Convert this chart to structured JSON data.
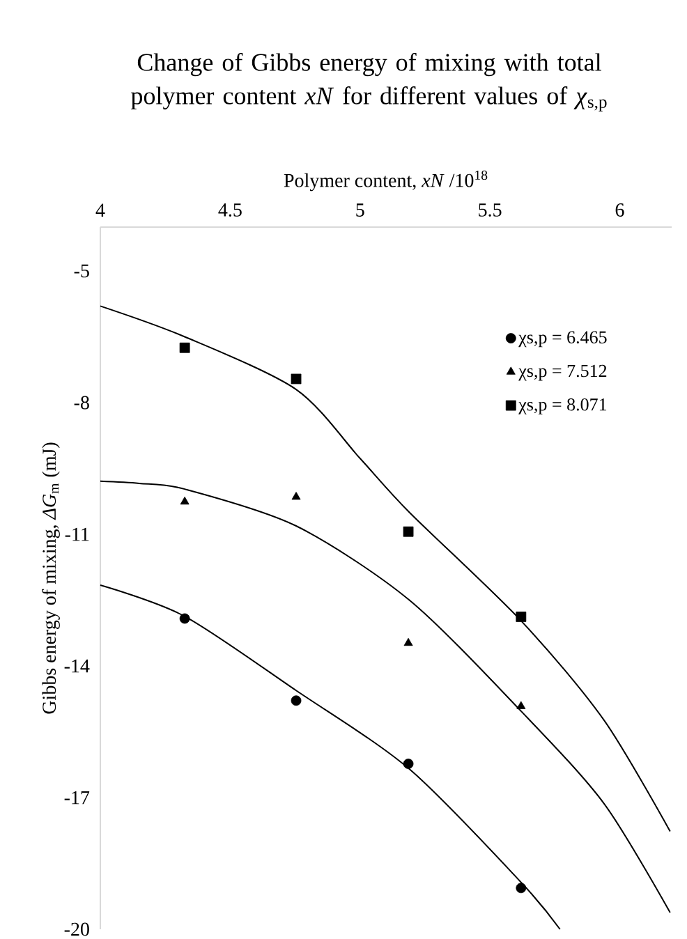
{
  "chart_data": {
    "type": "scatter",
    "title": "Change of Gibbs energy of mixing with total polymer content *xN* for different values of *χ*$_{s,p}$",
    "xlabel": "Polymer content, *xN* /10$^{18}$",
    "ylabel": "Gibbs energy of mixing, *ΔG*$_{m}$ (mJ)",
    "xlim": [
      4,
      6.2
    ],
    "xticks": [
      4,
      4.5,
      5,
      5.5,
      6
    ],
    "ylim": [
      -20,
      -4
    ],
    "yticks": [
      -5,
      -8,
      -11,
      -14,
      -17,
      -20
    ],
    "legend": "top right",
    "grid": false,
    "series": [
      {
        "type": "scatter",
        "name": "χs,p = 6.465",
        "color": "#000000",
        "marker": "circle",
        "x": [
          4.325,
          4.754,
          5.186,
          5.62
        ],
        "values": [
          -12.92,
          -14.79,
          -16.23,
          -19.06
        ]
      },
      {
        "type": "scatter",
        "name": "χs,p = 7.512",
        "color": "#000000",
        "marker": "triangle",
        "x": [
          4.325,
          4.754,
          5.186,
          5.62
        ],
        "values": [
          -10.26,
          -10.15,
          -13.48,
          -14.92
        ]
      },
      {
        "type": "scatter",
        "name": "χs,p = 8.071",
        "color": "#000000",
        "marker": "square",
        "x": [
          4.325,
          4.754,
          5.186,
          5.62
        ],
        "values": [
          -6.75,
          -7.46,
          -10.94,
          -12.88
        ]
      },
      {
        "type": "line",
        "color": "#000000",
        "marker": "none",
        "x": [
          4.0,
          4.325,
          4.754,
          5.0,
          5.19,
          5.62,
          5.94,
          6.194
        ],
        "values": [
          -5.8,
          -6.5,
          -7.7,
          -9.27,
          -10.5,
          -12.97,
          -15.24,
          -17.77
        ]
      },
      {
        "type": "line",
        "color": "#000000",
        "marker": "none",
        "x": [
          4.0,
          4.15,
          4.325,
          4.754,
          5.19,
          5.62,
          5.94,
          6.194
        ],
        "values": [
          -9.79,
          -9.84,
          -9.97,
          -10.81,
          -12.5,
          -15.03,
          -17.14,
          -19.62
        ]
      },
      {
        "type": "line",
        "color": "#000000",
        "marker": "none",
        "x": [
          4.0,
          4.325,
          4.754,
          5.19,
          5.62,
          5.77
        ],
        "values": [
          -12.16,
          -12.87,
          -14.56,
          -16.35,
          -18.93,
          -20
        ]
      }
    ]
  }
}
